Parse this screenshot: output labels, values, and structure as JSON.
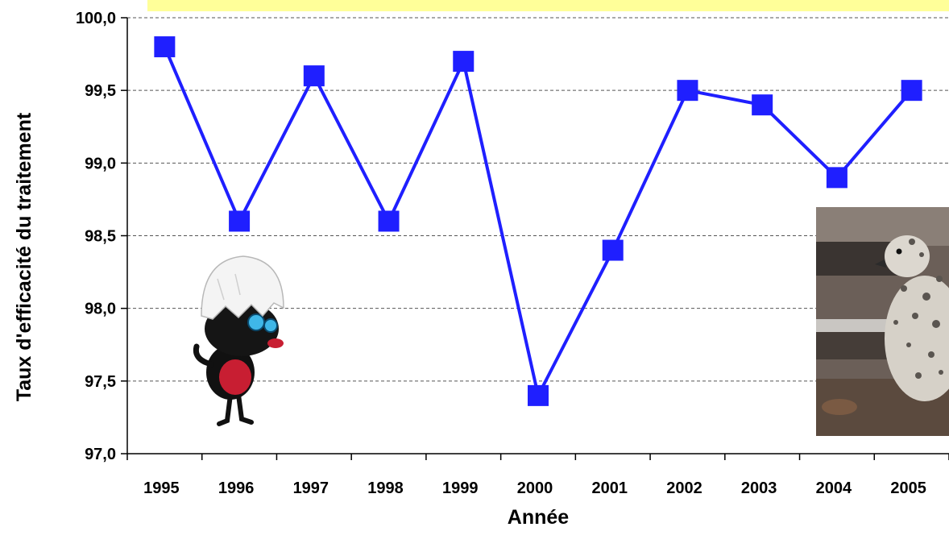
{
  "chart_data": {
    "type": "line",
    "title": "",
    "xlabel": "Année",
    "ylabel": "Taux d'efficacité du traitement",
    "categories": [
      "1995",
      "1996",
      "1997",
      "1998",
      "1999",
      "2000",
      "2001",
      "2002",
      "2003",
      "2004",
      "2005"
    ],
    "series": [
      {
        "values": [
          99.8,
          98.6,
          99.6,
          98.6,
          99.7,
          97.4,
          98.4,
          99.5,
          99.4,
          98.9,
          99.5
        ]
      }
    ],
    "ylim": [
      97.0,
      100.0
    ],
    "yticks": [
      "97,0",
      "97,5",
      "98,0",
      "98,5",
      "99,0",
      "99,5",
      "100,0"
    ],
    "ytick_values": [
      97.0,
      97.5,
      98.0,
      98.5,
      99.0,
      99.5,
      100.0
    ],
    "grid": "horizontal dashed",
    "legend": "none",
    "colors": {
      "line": "#1f1fff",
      "marker": "#1f1fff",
      "banner": "#ffff99",
      "grid": "#555555"
    }
  },
  "decorations": {
    "left_picture": "cartoon-chick-in-eggshell",
    "right_picture": "gull-chick-photo"
  }
}
